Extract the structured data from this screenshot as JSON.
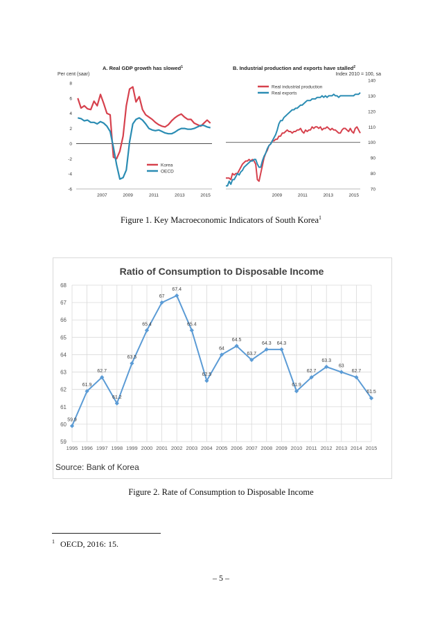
{
  "figure1": {
    "caption_text": "Figure 1. Key Macroeconomic Indicators of South Korea",
    "caption_sup": "1",
    "panelA": {
      "title": "A. Real GDP growth has slowed",
      "title_sup": "1",
      "unit": "Per cent (saar)",
      "legend": [
        {
          "label": "Korea",
          "color": "#d6414d"
        },
        {
          "label": "OECD",
          "color": "#2a8cb3"
        }
      ]
    },
    "panelB": {
      "title": "B. Industrial production and exports have stalled",
      "title_sup": "2",
      "unit": "Index 2010 = 100, sa",
      "legend": [
        {
          "label": "Real industrial production",
          "color": "#d6414d"
        },
        {
          "label": "Real exports",
          "color": "#2a8cb3"
        }
      ]
    }
  },
  "chart_data": [
    {
      "type": "line",
      "title": "A. Real GDP growth has slowed",
      "ylabel": "Per cent (saar)",
      "ylim": [
        -6,
        8
      ],
      "yticks": [
        "8",
        "6",
        "4",
        "2",
        "0",
        "-2",
        "-4",
        "-6"
      ],
      "xticks": [
        "2007",
        "2009",
        "2011",
        "2013",
        "2015"
      ],
      "x": [
        "2005Q3",
        "2005Q4",
        "2006Q1",
        "2006Q2",
        "2006Q3",
        "2006Q4",
        "2007Q1",
        "2007Q2",
        "2007Q3",
        "2007Q4",
        "2008Q1",
        "2008Q2",
        "2008Q3",
        "2008Q4",
        "2009Q1",
        "2009Q2",
        "2009Q3",
        "2009Q4",
        "2010Q1",
        "2010Q2",
        "2010Q3",
        "2010Q4",
        "2011Q1",
        "2011Q2",
        "2011Q3",
        "2011Q4",
        "2012Q1",
        "2012Q2",
        "2012Q3",
        "2012Q4",
        "2013Q1",
        "2013Q2",
        "2013Q3",
        "2013Q4",
        "2014Q1",
        "2014Q2",
        "2014Q3",
        "2014Q4",
        "2015Q1",
        "2015Q2",
        "2015Q3",
        "2015Q4"
      ],
      "series": [
        {
          "name": "Korea",
          "color": "#d6414d",
          "values": [
            6.0,
            4.7,
            5.0,
            4.6,
            4.5,
            5.6,
            5.0,
            6.5,
            5.3,
            4.0,
            3.8,
            -1.8,
            -2.0,
            -1.0,
            1.0,
            5.0,
            7.2,
            7.5,
            5.5,
            6.2,
            4.5,
            3.8,
            3.5,
            3.2,
            2.8,
            2.5,
            2.3,
            2.2,
            2.5,
            3.0,
            3.4,
            3.7,
            3.9,
            3.5,
            3.2,
            3.2,
            2.7,
            2.5,
            2.3,
            2.7,
            3.1,
            2.7
          ]
        },
        {
          "name": "OECD",
          "color": "#2a8cb3",
          "values": [
            3.4,
            3.3,
            3.0,
            3.1,
            2.8,
            2.8,
            2.6,
            2.9,
            2.7,
            2.3,
            1.6,
            -0.5,
            -2.8,
            -4.7,
            -4.5,
            -3.5,
            0.2,
            2.6,
            3.2,
            3.4,
            3.1,
            2.6,
            2.0,
            1.8,
            1.7,
            1.8,
            1.6,
            1.4,
            1.3,
            1.3,
            1.5,
            1.8,
            2.0,
            2.0,
            1.9,
            1.9,
            2.0,
            2.2,
            2.4,
            2.4,
            2.2,
            2.1
          ]
        }
      ]
    },
    {
      "type": "line",
      "title": "B. Industrial production and exports have stalled",
      "ylabel": "Index 2010 = 100, sa",
      "ylim": [
        70,
        140
      ],
      "yticks": [
        "140",
        "130",
        "120",
        "110",
        "100",
        "90",
        "80",
        "70"
      ],
      "xticks": [
        "2009",
        "2011",
        "2013",
        "2015"
      ],
      "x_start": 2005.5,
      "x_end": 2016.0,
      "series": [
        {
          "name": "Real industrial production",
          "color": "#d6414d",
          "values": [
            77,
            77,
            77,
            76,
            80,
            79,
            80,
            80,
            82,
            84,
            86,
            87,
            88,
            88,
            89,
            88,
            89,
            88,
            86,
            76,
            75,
            80,
            85,
            90,
            93,
            95,
            98,
            99,
            101,
            101,
            102,
            102,
            104,
            104,
            106,
            106,
            107,
            108,
            107,
            107,
            106,
            107,
            107,
            108,
            108,
            109,
            107,
            106,
            108,
            107,
            108,
            108,
            110,
            109,
            110,
            110,
            109,
            110,
            108,
            109,
            109,
            110,
            109,
            108,
            109,
            108,
            108,
            107,
            106,
            106,
            108,
            109,
            109,
            108,
            107,
            109,
            107,
            106,
            109,
            110,
            108,
            106
          ]
        },
        {
          "name": "Real exports",
          "color": "#2a8cb3",
          "values": [
            72,
            72,
            75,
            73,
            76,
            76,
            78,
            80,
            79,
            81,
            82,
            84,
            85,
            86,
            87,
            88,
            88,
            89,
            89,
            86,
            84,
            84,
            88,
            91,
            93,
            96,
            98,
            99,
            101,
            103,
            105,
            108,
            112,
            114,
            114,
            116,
            117,
            118,
            119,
            120,
            121,
            121,
            122,
            122,
            123,
            124,
            124,
            125,
            126,
            127,
            127,
            127,
            128,
            128,
            128,
            129,
            129,
            129,
            130,
            129,
            130,
            129,
            130,
            130,
            130,
            131,
            130,
            130,
            129,
            130,
            130,
            130,
            130,
            130,
            130,
            130,
            130,
            130,
            131,
            131,
            131,
            132
          ]
        }
      ]
    },
    {
      "type": "line",
      "title": "Ratio of Consumption to Disposable Income",
      "xlabel": "",
      "ylabel": "",
      "ylim": [
        59,
        68
      ],
      "yticks": [
        "59",
        "60",
        "61",
        "62",
        "63",
        "64",
        "65",
        "66",
        "67",
        "68"
      ],
      "categories": [
        "1995",
        "1996",
        "1997",
        "1998",
        "1999",
        "2000",
        "2001",
        "2002",
        "2003",
        "2004",
        "2005",
        "2006",
        "2007",
        "2008",
        "2009",
        "2010",
        "2011",
        "2012",
        "2013",
        "2014",
        "2015"
      ],
      "series": [
        {
          "color": "#5b9bd5",
          "values": [
            59.9,
            61.9,
            62.7,
            61.2,
            63.5,
            65.4,
            67,
            67.4,
            65.4,
            62.5,
            64,
            64.5,
            63.7,
            64.3,
            64.3,
            61.9,
            62.7,
            63.3,
            63,
            62.7,
            61.5
          ],
          "labels": [
            "59.9",
            "61.9",
            "62.7",
            "61.2",
            "63.5",
            "65.4",
            "67",
            "67.4",
            "65.4",
            "62.5",
            "64",
            "64.5",
            "63.7",
            "64.3",
            "64.3",
            "61.9",
            "62.7",
            "63.3",
            "63",
            "62.7",
            "61.5"
          ]
        }
      ],
      "grid": true
    }
  ],
  "figure2": {
    "title": "Ratio of Consumption to Disposable Income",
    "source": "Source: Bank of Korea",
    "caption_text": "Figure 2. Rate of Consumption to Disposable Income"
  },
  "footnote": {
    "marker": "1",
    "text": "OECD, 2016: 15."
  },
  "page_number": "– 5 –"
}
